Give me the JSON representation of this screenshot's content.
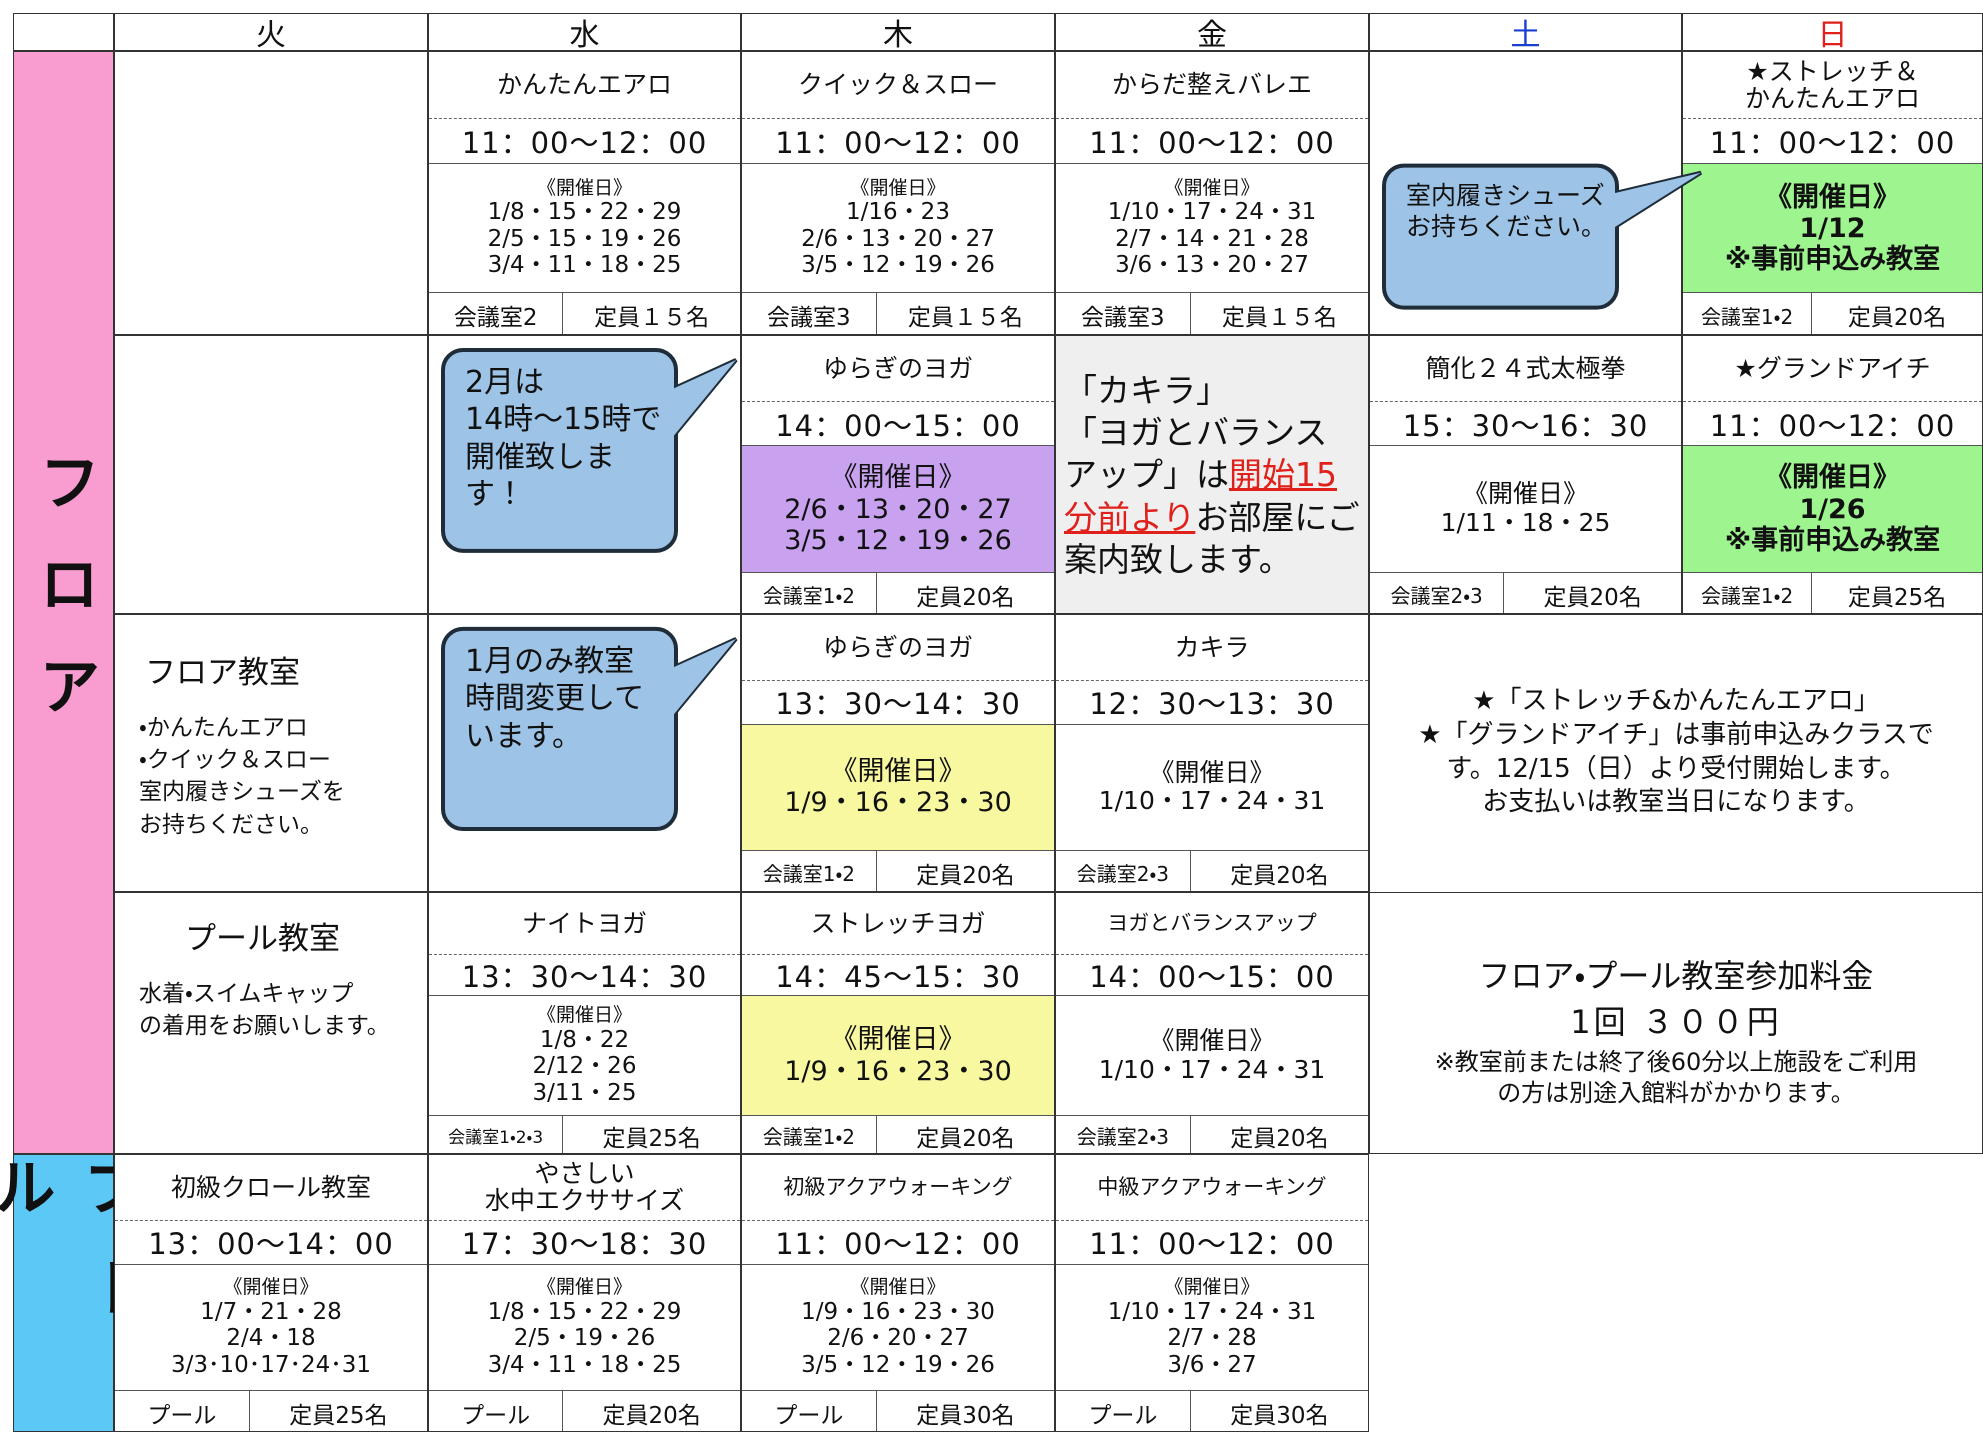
{
  "header": {
    "days": [
      "火",
      "水",
      "木",
      "金",
      "土",
      "日"
    ]
  },
  "sections": [
    "フロア",
    "プール"
  ],
  "dates_heading": "《開催日》",
  "rows": [
    [
      null,
      {
        "name": "かんたんエアロ",
        "time": "11：00～12：00",
        "dates": [
          "1/8・15・22・29",
          "2/5・15・19・26",
          "3/4・11・18・25"
        ],
        "room": "会議室2",
        "capacity": "定員１５名"
      },
      {
        "name": "クイック＆スロー",
        "time": "11：00～12：00",
        "dates": [
          "1/16・23",
          "2/6・13・20・27",
          "3/5・12・19・26"
        ],
        "room": "会議室3",
        "capacity": "定員１５名"
      },
      {
        "name": "からだ整えバレエ",
        "time": "11：00～12：00",
        "dates": [
          "1/10・17・24・31",
          "2/7・14・21・28",
          "3/6・13・20・27"
        ],
        "room": "会議室3",
        "capacity": "定員１５名"
      },
      {
        "callout": [
          "室内履きシューズ",
          "お持ちください。"
        ]
      },
      {
        "name": [
          "★ストレッチ＆",
          "かんたんエアロ"
        ],
        "time": "11：00～12：00",
        "dates": [
          "1/12"
        ],
        "note": "※事前申込み教室",
        "highlight": "#9ef590",
        "room": "会議室1・2",
        "capacity": "定員20名"
      }
    ],
    [
      null,
      {
        "callout": [
          "2月は",
          "14時～15時で",
          "開催致します！"
        ]
      },
      {
        "name": "ゆらぎのヨガ",
        "time": "14：00～15：00",
        "dates": [
          "2/6・13・20・27",
          "3/5・12・19・26"
        ],
        "highlight": "#c8a2ee",
        "room": "会議室1・2",
        "capacity": "定員20名"
      },
      {
        "notice": {
          "heading": "「カキラ」",
          "before": "「ヨガとバランスアップ」は",
          "emphasis": "開始15分前より",
          "after": "お部屋にご案内致します。"
        }
      },
      {
        "name": "簡化２４式太極拳",
        "time": "15：30～16：30",
        "dates": [
          "1/11・18・25"
        ],
        "room": "会議室2・3",
        "capacity": "定員20名"
      },
      {
        "name": "★グランドアイチ",
        "time": "11：00～12：00",
        "dates": [
          "1/26"
        ],
        "note": "※事前申込み教室",
        "highlight": "#9ef590",
        "room": "会議室1・2",
        "capacity": "定員25名"
      }
    ],
    [
      {
        "info": {
          "title": "フロア教室",
          "lines": [
            "・かんたんエアロ",
            "・クイック＆スロー",
            "室内履きシューズを",
            "お持ちください。"
          ]
        }
      },
      {
        "callout": [
          "1月のみ教室",
          "時間変更して",
          "います。"
        ]
      },
      {
        "name": "ゆらぎのヨガ",
        "time": "13：30～14：30",
        "dates": [
          "1/9・16・23・30"
        ],
        "highlight": "#f8f8a0",
        "room": "会議室1・2",
        "capacity": "定員20名"
      },
      {
        "name": "カキラ",
        "time": "12：30～13：30",
        "dates": [
          "1/10・17・24・31"
        ],
        "room": "会議室2・3",
        "capacity": "定員20名"
      },
      {
        "notes": [
          "★「ストレッチ&かんたんエアロ」",
          "★「グランドアイチ」は事前申込みクラスで",
          "す。12/15（日）より受付開始します。",
          "お支払いは教室当日になります。"
        ]
      },
      null
    ],
    [
      {
        "info": {
          "title": "プール教室",
          "lines": [
            "水着・スイムキャップ",
            "の着用をお願いします。"
          ]
        }
      },
      {
        "name": "ナイトヨガ",
        "time": "13：30～14：30",
        "dates": [
          "1/8・22",
          "2/12・26",
          "3/11・25"
        ],
        "room": "会議室1・2・3",
        "capacity": "定員25名"
      },
      {
        "name": "ストレッチヨガ",
        "time": "14：45～15：30",
        "dates": [
          "1/9・16・23・30"
        ],
        "highlight": "#f8f8a0",
        "room": "会議室1・2",
        "capacity": "定員20名"
      },
      {
        "name": "ヨガとバランスアップ",
        "time": "14：00～15：00",
        "dates": [
          "1/10・17・24・31"
        ],
        "room": "会議室2・3",
        "capacity": "定員20名"
      },
      {
        "fee": {
          "title": "フロア・プール教室参加料金",
          "price": "1回 ３００円",
          "lines": [
            "※教室前または終了後60分以上施設をご利用",
            "の方は別途入館料がかかります。"
          ]
        }
      },
      null
    ],
    [
      {
        "name": "初級クロール教室",
        "time": "13：00～14：00",
        "dates": [
          "1/7・21・28",
          "2/4・18",
          "3/3･10･17･24･31"
        ],
        "room": "プール",
        "capacity": "定員25名"
      },
      {
        "name": [
          "やさしい",
          "水中エクササイズ"
        ],
        "time": "17：30～18：30",
        "dates": [
          "1/8・15・22・29",
          "2/5・19・26",
          "3/4・11・18・25"
        ],
        "room": "プール",
        "capacity": "定員20名"
      },
      {
        "name": "初級アクアウォーキング",
        "time": "11：00～12：00",
        "dates": [
          "1/9・16・23・30",
          "2/6・20・27",
          "3/5・12・19・26"
        ],
        "room": "プール",
        "capacity": "定員30名"
      },
      {
        "name": "中級アクアウォーキング",
        "time": "11：00～12：00",
        "dates": [
          "1/10・17・24・31",
          "2/7・28",
          "3/6・27"
        ],
        "room": "プール",
        "capacity": "定員30名"
      },
      null,
      null
    ]
  ]
}
